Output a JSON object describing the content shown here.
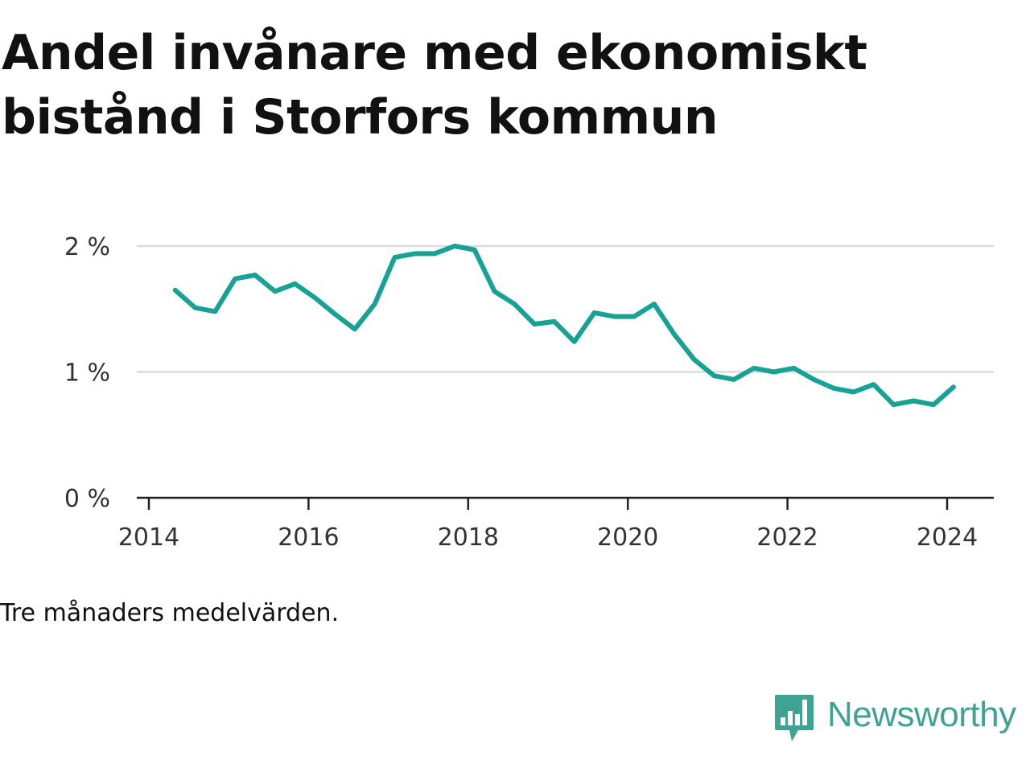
{
  "title": "Andel invånare med ekonomiskt bistånd i Storfors kommun",
  "note": "Tre månaders medelvärden.",
  "brand": {
    "name": "Newsworthy",
    "icon": "bar-chart-speech-bubble-icon",
    "color": "#3fa393"
  },
  "chart_data": {
    "type": "line",
    "title": "Andel invånare med ekonomiskt bistånd i Storfors kommun",
    "xlabel": "",
    "ylabel": "",
    "xlim": [
      2014.0,
      2024.5
    ],
    "ylim": [
      0,
      2
    ],
    "grid": true,
    "line_color": "#16a294",
    "x_ticks": [
      {
        "value": 2014,
        "label": "2014"
      },
      {
        "value": 2016,
        "label": "2016"
      },
      {
        "value": 2018,
        "label": "2018"
      },
      {
        "value": 2020,
        "label": "2020"
      },
      {
        "value": 2022,
        "label": "2022"
      },
      {
        "value": 2024,
        "label": "2024"
      }
    ],
    "y_ticks": [
      {
        "value": 0,
        "label": "0 %"
      },
      {
        "value": 1,
        "label": "1 %"
      },
      {
        "value": 2,
        "label": "2 %"
      }
    ],
    "series": [
      {
        "x": [
          2014.33,
          2014.58,
          2014.83,
          2015.08,
          2015.33,
          2015.58,
          2015.83,
          2016.08,
          2016.33,
          2016.58,
          2016.83,
          2017.08,
          2017.33,
          2017.58,
          2017.83,
          2018.08,
          2018.33,
          2018.58,
          2018.83,
          2019.08,
          2019.33,
          2019.58,
          2019.83,
          2020.08,
          2020.33,
          2020.58,
          2020.83,
          2021.08,
          2021.33,
          2021.58,
          2021.83,
          2022.08,
          2022.33,
          2022.58,
          2022.83,
          2023.08,
          2023.33,
          2023.58,
          2023.83,
          2024.08
        ],
        "values": [
          1.65,
          1.51,
          1.48,
          1.74,
          1.77,
          1.64,
          1.7,
          1.59,
          1.46,
          1.34,
          1.54,
          1.91,
          1.94,
          1.94,
          2.0,
          1.97,
          1.64,
          1.54,
          1.38,
          1.4,
          1.24,
          1.47,
          1.44,
          1.44,
          1.54,
          1.3,
          1.1,
          0.97,
          0.94,
          1.03,
          1.0,
          1.03,
          0.94,
          0.87,
          0.84,
          0.9,
          0.74,
          0.77,
          0.74,
          0.88
        ]
      }
    ]
  }
}
